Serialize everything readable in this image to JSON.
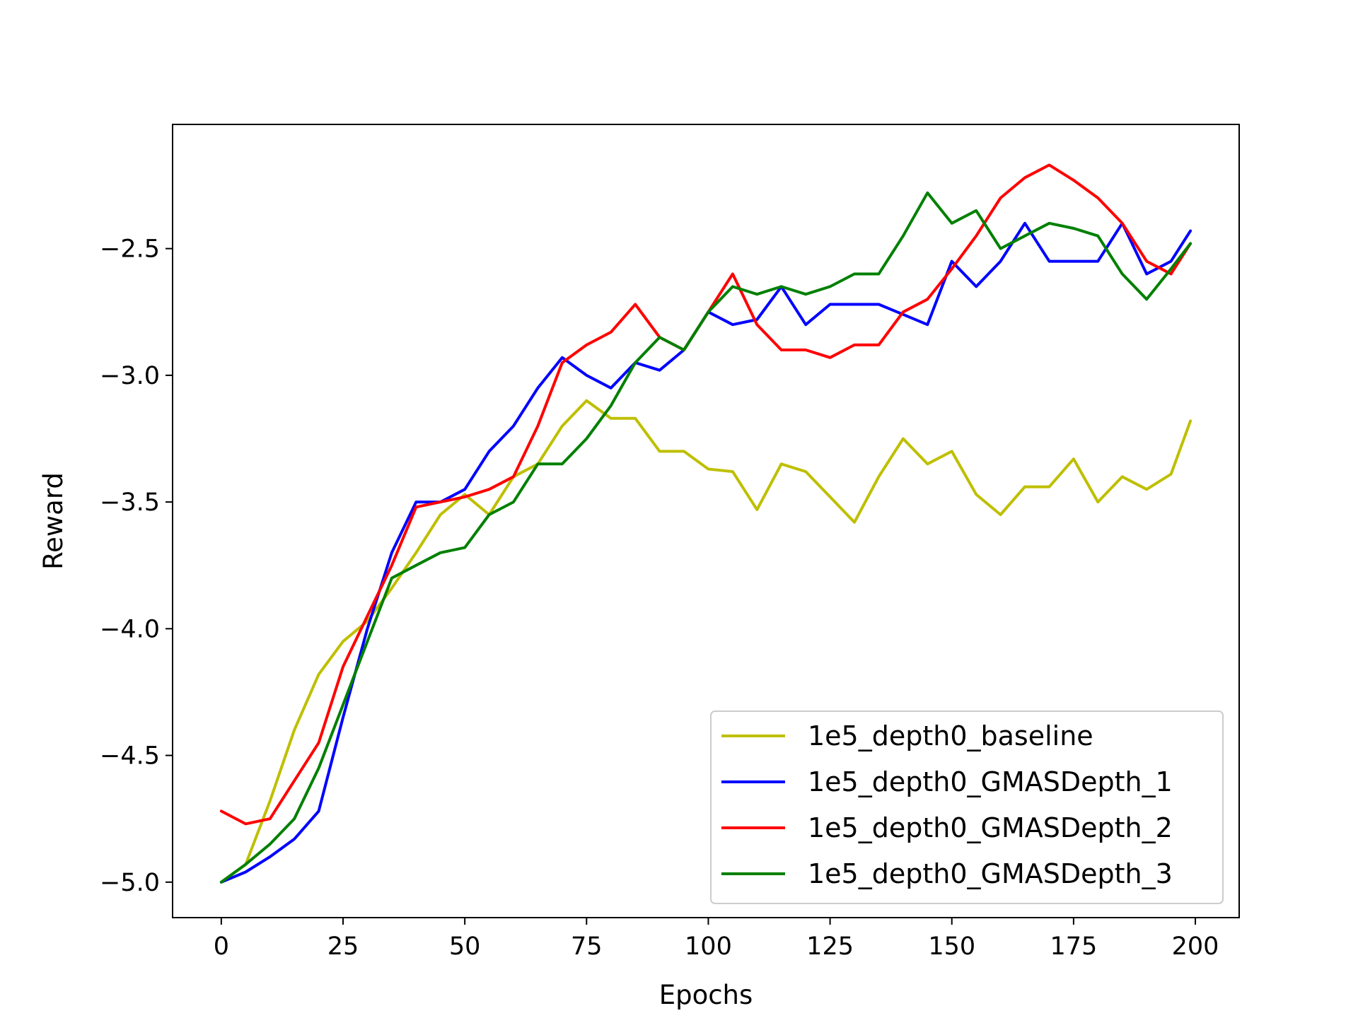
{
  "chart_data": {
    "type": "line",
    "title": "",
    "xlabel": "Epochs",
    "ylabel": "Reward",
    "xlim": [
      -10,
      209
    ],
    "ylim": [
      -5.14,
      -2.01
    ],
    "xticks": [
      0,
      25,
      50,
      75,
      100,
      125,
      150,
      175,
      200
    ],
    "yticks": [
      -5.0,
      -4.5,
      -4.0,
      -3.5,
      -3.0,
      -2.5
    ],
    "xtick_labels": [
      "0",
      "25",
      "50",
      "75",
      "100",
      "125",
      "150",
      "175",
      "200"
    ],
    "ytick_labels": [
      "−5.0",
      "−4.5",
      "−4.0",
      "−3.5",
      "−3.0",
      "−2.5"
    ],
    "grid": false,
    "legend_position": "lower-right",
    "x": [
      0,
      5,
      10,
      15,
      20,
      25,
      30,
      35,
      40,
      45,
      50,
      55,
      60,
      65,
      70,
      75,
      80,
      85,
      90,
      95,
      100,
      105,
      110,
      115,
      120,
      125,
      130,
      135,
      140,
      145,
      150,
      155,
      160,
      165,
      170,
      175,
      180,
      185,
      190,
      195,
      199
    ],
    "series": [
      {
        "name": "1e5_depth0_baseline",
        "color": "#bfbf00",
        "values": [
          -5.0,
          -4.93,
          -4.68,
          -4.4,
          -4.18,
          -4.05,
          -3.97,
          -3.84,
          -3.7,
          -3.55,
          -3.47,
          -3.55,
          -3.4,
          -3.35,
          -3.2,
          -3.1,
          -3.17,
          -3.17,
          -3.3,
          -3.3,
          -3.37,
          -3.38,
          -3.53,
          -3.35,
          -3.38,
          -3.48,
          -3.58,
          -3.4,
          -3.25,
          -3.35,
          -3.3,
          -3.47,
          -3.55,
          -3.44,
          -3.44,
          -3.33,
          -3.5,
          -3.4,
          -3.45,
          -3.39,
          -3.18
        ]
      },
      {
        "name": "1e5_depth0_GMASDepth_1",
        "color": "#0000ff",
        "values": [
          -5.0,
          -4.96,
          -4.9,
          -4.83,
          -4.72,
          -4.35,
          -4.0,
          -3.7,
          -3.5,
          -3.5,
          -3.45,
          -3.3,
          -3.2,
          -3.05,
          -2.93,
          -3.0,
          -3.05,
          -2.95,
          -2.98,
          -2.9,
          -2.75,
          -2.8,
          -2.78,
          -2.65,
          -2.8,
          -2.72,
          -2.72,
          -2.72,
          -2.76,
          -2.8,
          -2.55,
          -2.65,
          -2.55,
          -2.4,
          -2.55,
          -2.55,
          -2.55,
          -2.4,
          -2.6,
          -2.55,
          -2.43
        ]
      },
      {
        "name": "1e5_depth0_GMASDepth_2",
        "color": "#ff0000",
        "values": [
          -4.72,
          -4.77,
          -4.75,
          -4.6,
          -4.45,
          -4.15,
          -3.95,
          -3.75,
          -3.52,
          -3.5,
          -3.48,
          -3.45,
          -3.4,
          -3.2,
          -2.95,
          -2.88,
          -2.83,
          -2.72,
          -2.85,
          -2.9,
          -2.75,
          -2.6,
          -2.8,
          -2.9,
          -2.9,
          -2.93,
          -2.88,
          -2.88,
          -2.75,
          -2.7,
          -2.58,
          -2.45,
          -2.3,
          -2.22,
          -2.17,
          -2.23,
          -2.3,
          -2.4,
          -2.55,
          -2.6,
          -2.48
        ]
      },
      {
        "name": "1e5_depth0_GMASDepth_3",
        "color": "#008000",
        "values": [
          -5.0,
          -4.93,
          -4.85,
          -4.75,
          -4.55,
          -4.3,
          -4.05,
          -3.8,
          -3.75,
          -3.7,
          -3.68,
          -3.55,
          -3.5,
          -3.35,
          -3.35,
          -3.25,
          -3.12,
          -2.95,
          -2.85,
          -2.9,
          -2.75,
          -2.65,
          -2.68,
          -2.65,
          -2.68,
          -2.65,
          -2.6,
          -2.6,
          -2.45,
          -2.28,
          -2.4,
          -2.35,
          -2.5,
          -2.45,
          -2.4,
          -2.42,
          -2.45,
          -2.6,
          -2.7,
          -2.58,
          -2.48
        ]
      }
    ]
  }
}
